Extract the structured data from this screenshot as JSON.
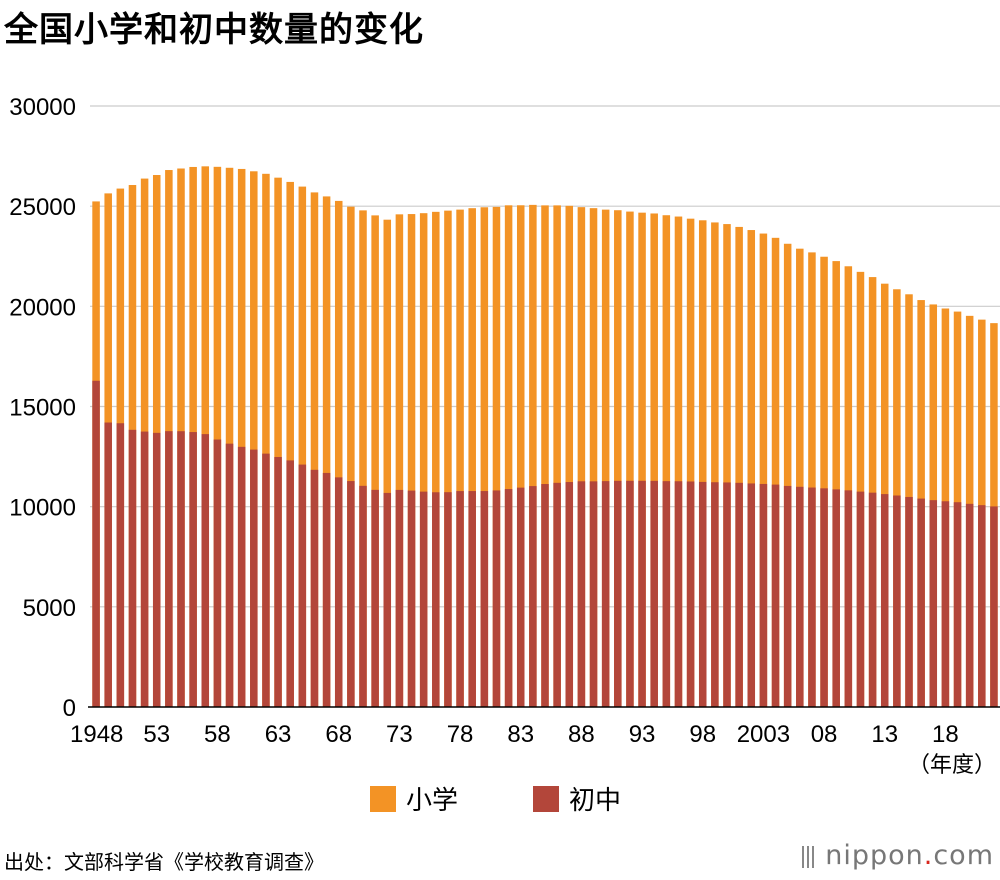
{
  "title": "全国小学和初中数量的变化",
  "chart_data": {
    "type": "bar",
    "title": "全国小学和初中数量的变化",
    "xlabel_unit": "（年度）",
    "ylabel": "",
    "ylim": [
      0,
      30000
    ],
    "yticks": [
      0,
      5000,
      10000,
      15000,
      20000,
      25000,
      30000
    ],
    "categories": [
      1948,
      1949,
      1950,
      1951,
      1952,
      1953,
      1954,
      1955,
      1956,
      1957,
      1958,
      1959,
      1960,
      1961,
      1962,
      1963,
      1964,
      1965,
      1966,
      1967,
      1968,
      1969,
      1970,
      1971,
      1972,
      1973,
      1974,
      1975,
      1976,
      1977,
      1978,
      1979,
      1980,
      1981,
      1982,
      1983,
      1984,
      1985,
      1986,
      1987,
      1988,
      1989,
      1990,
      1991,
      1992,
      1993,
      1994,
      1995,
      1996,
      1997,
      1998,
      1999,
      2000,
      2001,
      2002,
      2003,
      2004,
      2005,
      2006,
      2007,
      2008,
      2009,
      2010,
      2011,
      2012,
      2013,
      2014,
      2015,
      2016,
      2017,
      2018,
      2019,
      2020,
      2021,
      2022
    ],
    "xtick_labels": [
      {
        "year": 1948,
        "label": "1948"
      },
      {
        "year": 1953,
        "label": "53"
      },
      {
        "year": 1958,
        "label": "58"
      },
      {
        "year": 1963,
        "label": "63"
      },
      {
        "year": 1968,
        "label": "68"
      },
      {
        "year": 1973,
        "label": "73"
      },
      {
        "year": 1978,
        "label": "78"
      },
      {
        "year": 1983,
        "label": "83"
      },
      {
        "year": 1988,
        "label": "88"
      },
      {
        "year": 1993,
        "label": "93"
      },
      {
        "year": 1998,
        "label": "98"
      },
      {
        "year": 2003,
        "label": "2003"
      },
      {
        "year": 2008,
        "label": "08"
      },
      {
        "year": 2013,
        "label": "13"
      },
      {
        "year": 2018,
        "label": "18"
      }
    ],
    "series": [
      {
        "name": "小学",
        "color": "#f39325",
        "values": [
          25237,
          25638,
          25878,
          26056,
          26377,
          26555,
          26804,
          26880,
          26957,
          26988,
          26964,
          26916,
          26858,
          26741,
          26615,
          26423,
          26210,
          25977,
          25687,
          25487,
          25262,
          24975,
          24790,
          24540,
          24325,
          24592,
          24606,
          24650,
          24717,
          24777,
          24828,
          24899,
          24945,
          24964,
          25043,
          25045,
          25064,
          25040,
          25040,
          25017,
          24951,
          24901,
          24827,
          24798,
          24730,
          24676,
          24635,
          24548,
          24482,
          24376,
          24295,
          24188,
          24106,
          23964,
          23808,
          23633,
          23420,
          23123,
          22878,
          22693,
          22476,
          22258,
          22000,
          21721,
          21460,
          21131,
          20852,
          20601,
          20313,
          20095,
          19892,
          19738,
          19525,
          19336,
          19161
        ]
      },
      {
        "name": "初中",
        "color": "#b3463a",
        "values": [
          16285,
          14200,
          14165,
          13836,
          13748,
          13685,
          13769,
          13767,
          13724,
          13622,
          13352,
          13145,
          12986,
          12849,
          12648,
          12480,
          12310,
          12101,
          11840,
          11684,
          11463,
          11278,
          11040,
          10839,
          10686,
          10836,
          10802,
          10751,
          10719,
          10723,
          10778,
          10780,
          10780,
          10810,
          10879,
          10950,
          11027,
          11131,
          11190,
          11230,
          11266,
          11264,
          11275,
          11290,
          11292,
          11292,
          11289,
          11274,
          11269,
          11257,
          11236,
          11220,
          11209,
          11191,
          11159,
          11134,
          11102,
          11035,
          10992,
          10955,
          10915,
          10864,
          10815,
          10751,
          10699,
          10628,
          10557,
          10484,
          10404,
          10325,
          10270,
          10222,
          10142,
          10076,
          10012
        ]
      }
    ]
  },
  "legend": {
    "primary": "小学",
    "middle": "初中"
  },
  "source": "出处：文部科学省《学校教育调查》",
  "brand": {
    "name": "nippon",
    "dot": ".",
    "suffix": "com"
  }
}
